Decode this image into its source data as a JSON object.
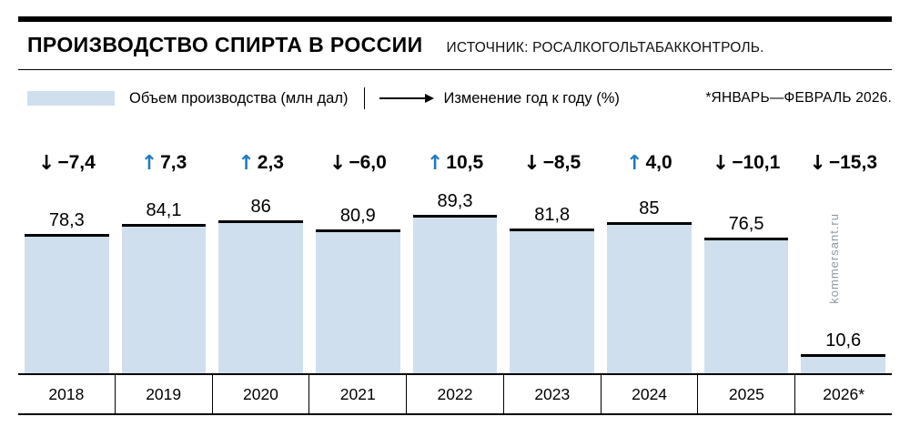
{
  "header": {
    "title": "ПРОИЗВОДСТВО СПИРТА В РОССИИ",
    "source": "ИСТОЧНИК: РОСАЛКОГОЛЬТАБАККОНТРОЛЬ."
  },
  "legend": {
    "bar_label": "Объем производства (млн дал)",
    "change_label": "Изменение год к году (%)",
    "footnote": "*ЯНВАРЬ—ФЕВРАЛЬ 2026."
  },
  "watermark": "kommersant.ru",
  "colors": {
    "bar_fill": "#cfdfed",
    "up_arrow": "#1e7cc0",
    "down_arrow": "#000000",
    "text": "#000000"
  },
  "chart_data": {
    "type": "bar",
    "title": "ПРОИЗВОДСТВО СПИРТА В РОССИИ",
    "source": "РОСАЛКОГОЛЬТАБАККОНТРОЛЬ",
    "categories": [
      "2018",
      "2019",
      "2020",
      "2021",
      "2022",
      "2023",
      "2024",
      "2025",
      "2026*"
    ],
    "series": [
      {
        "name": "Объем производства (млн дал)",
        "values": [
          78.3,
          84.1,
          86,
          80.9,
          89.3,
          81.8,
          85,
          76.5,
          10.6
        ]
      },
      {
        "name": "Изменение год к году (%)",
        "values": [
          -7.4,
          7.3,
          2.3,
          -6.0,
          10.5,
          -8.5,
          4.0,
          -10.1,
          -15.3
        ]
      }
    ],
    "value_labels": [
      "78,3",
      "84,1",
      "86",
      "80,9",
      "89,3",
      "81,8",
      "85",
      "76,5",
      "10,6"
    ],
    "change_labels": [
      "−7,4",
      "7,3",
      "2,3",
      "−6,0",
      "10,5",
      "−8,5",
      "4,0",
      "−10,1",
      "−15,3"
    ],
    "change_directions": [
      "down",
      "up",
      "up",
      "down",
      "up",
      "down",
      "up",
      "down",
      "down"
    ],
    "ylim": [
      0,
      95
    ],
    "legend_position": "top",
    "footnote": "*ЯНВАРЬ—ФЕВРАЛЬ 2026."
  }
}
